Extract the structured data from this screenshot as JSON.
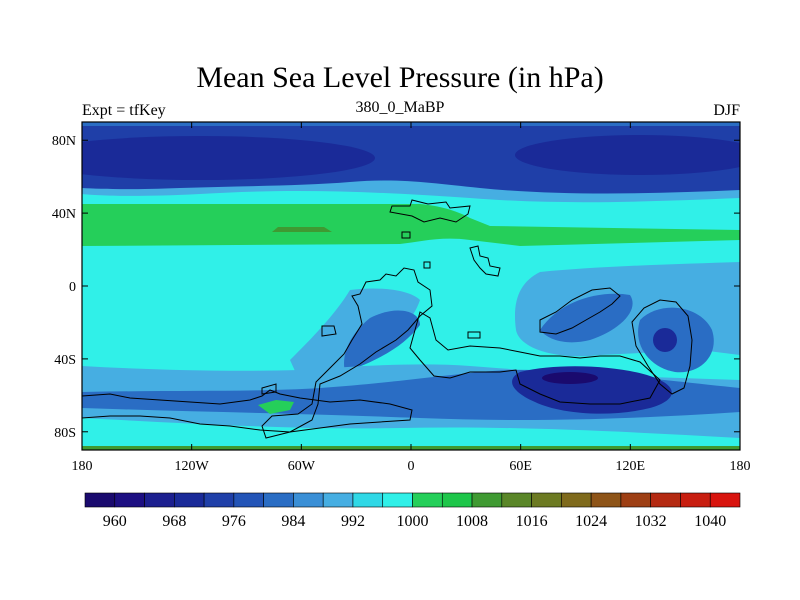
{
  "title": "Mean Sea Level Pressure (in hPa)",
  "subtitle_left": "Expt = tfKey",
  "subtitle_center": "380_0_MaBP",
  "subtitle_right": "DJF",
  "x_ticks": [
    "180",
    "120W",
    "60W",
    "0",
    "60E",
    "120E",
    "180"
  ],
  "y_ticks": [
    "80N",
    "40N",
    "0",
    "40S",
    "80S"
  ],
  "colorbar": {
    "labels": [
      "960",
      "968",
      "976",
      "984",
      "992",
      "1000",
      "1008",
      "1016",
      "1024",
      "1032",
      "1040"
    ],
    "colors": [
      "#1a0a6e",
      "#1d0f82",
      "#1c1f8f",
      "#1a2a98",
      "#1f3fa8",
      "#2354b7",
      "#2a6dc4",
      "#3a8fd6",
      "#46aee2",
      "#2fd8e6",
      "#30f0e8",
      "#25cf5a",
      "#1ec64a",
      "#3f9a32",
      "#5a8628",
      "#6c7a22",
      "#7f6a1c",
      "#8e5418",
      "#9e3f14",
      "#b42a12",
      "#c81e10",
      "#d8140e"
    ]
  },
  "chart_data": {
    "type": "heatmap",
    "title": "Mean Sea Level Pressure (in hPa)",
    "variable": "Mean Sea Level Pressure",
    "units": "hPa",
    "season": "DJF",
    "experiment": "tfKey",
    "period": "380_0_MaBP",
    "xlim": [
      -180,
      180
    ],
    "ylim": [
      -90,
      90
    ],
    "contour_levels": [
      960,
      964,
      968,
      972,
      976,
      980,
      984,
      988,
      992,
      996,
      1000,
      1004,
      1008,
      1012,
      1016,
      1020,
      1024,
      1028,
      1032,
      1036,
      1040
    ],
    "fill_colors": {
      "background": "#30f0e8",
      "low_bands": "#1f3fa8",
      "polar_low": "#1a2a98",
      "mid_band": "#2a6dc4",
      "subtropical_high": "#25cf5a",
      "peak_high": "#3f9a32",
      "southern_ocean": "#46aee2"
    }
  }
}
